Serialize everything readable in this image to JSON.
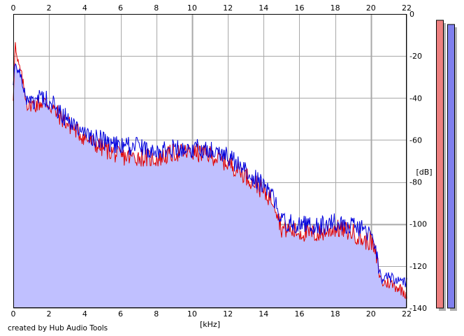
{
  "chart_data": {
    "type": "area",
    "xlabel": "[kHz]",
    "ylabel": "[dB]",
    "xlim": [
      0,
      22
    ],
    "ylim": [
      -140,
      0
    ],
    "x_ticks": [
      "0",
      "2",
      "4",
      "6",
      "8",
      "10",
      "12",
      "14",
      "16",
      "18",
      "20",
      "22"
    ],
    "y_ticks": [
      "0",
      "-20",
      "-40",
      "-60",
      "-80",
      "-100",
      "-120",
      "-140"
    ],
    "grid": true,
    "series": [
      {
        "color": "#e00000",
        "x": [
          0,
          0.1,
          0.2,
          0.4,
          0.8,
          1.2,
          1.6,
          2.0,
          2.4,
          3.0,
          3.6,
          4.0,
          4.6,
          5.0,
          5.6,
          6.0,
          7.0,
          8.0,
          9.0,
          10.0,
          11.0,
          12.0,
          12.6,
          13.0,
          13.6,
          14.0,
          14.6,
          15.0,
          16.0,
          17.0,
          18.0,
          19.0,
          19.6,
          20.0,
          20.3,
          20.6,
          21.0,
          21.5,
          22.0
        ],
        "values": [
          -40,
          -13,
          -22,
          -27,
          -44,
          -43,
          -42,
          -43,
          -47,
          -52,
          -56,
          -59,
          -62,
          -64,
          -66,
          -68,
          -68,
          -69,
          -66,
          -66,
          -67,
          -71,
          -74,
          -77,
          -81,
          -85,
          -89,
          -102,
          -104,
          -105,
          -102,
          -104,
          -108,
          -108,
          -116,
          -128,
          -128,
          -130,
          -133
        ]
      },
      {
        "color": "#0000dd",
        "x": [
          0,
          0.1,
          0.2,
          0.4,
          0.8,
          1.2,
          1.6,
          2.0,
          2.4,
          3.0,
          3.6,
          4.0,
          4.6,
          5.0,
          5.6,
          6.0,
          7.0,
          8.0,
          9.0,
          10.0,
          11.0,
          12.0,
          12.6,
          13.0,
          13.6,
          14.0,
          14.6,
          15.0,
          16.0,
          17.0,
          18.0,
          19.0,
          19.6,
          20.0,
          20.3,
          20.6,
          21.0,
          21.5,
          22.0
        ],
        "values": [
          -35,
          -20,
          -25,
          -30,
          -42,
          -41,
          -40,
          -41,
          -45,
          -50,
          -54,
          -58,
          -59,
          -60,
          -62,
          -63,
          -63,
          -65,
          -64,
          -64,
          -64,
          -68,
          -72,
          -75,
          -79,
          -82,
          -88,
          -99,
          -100,
          -101,
          -99,
          -101,
          -102,
          -106,
          -115,
          -126,
          -126,
          -127,
          -128
        ]
      }
    ],
    "meters": {
      "left_color": "#ee8080",
      "right_color": "#8080ee",
      "left_level_db": -3,
      "right_level_db": -5
    },
    "fill_color": "#c0c0ff"
  },
  "credit": "created by Hub Audio Tools"
}
